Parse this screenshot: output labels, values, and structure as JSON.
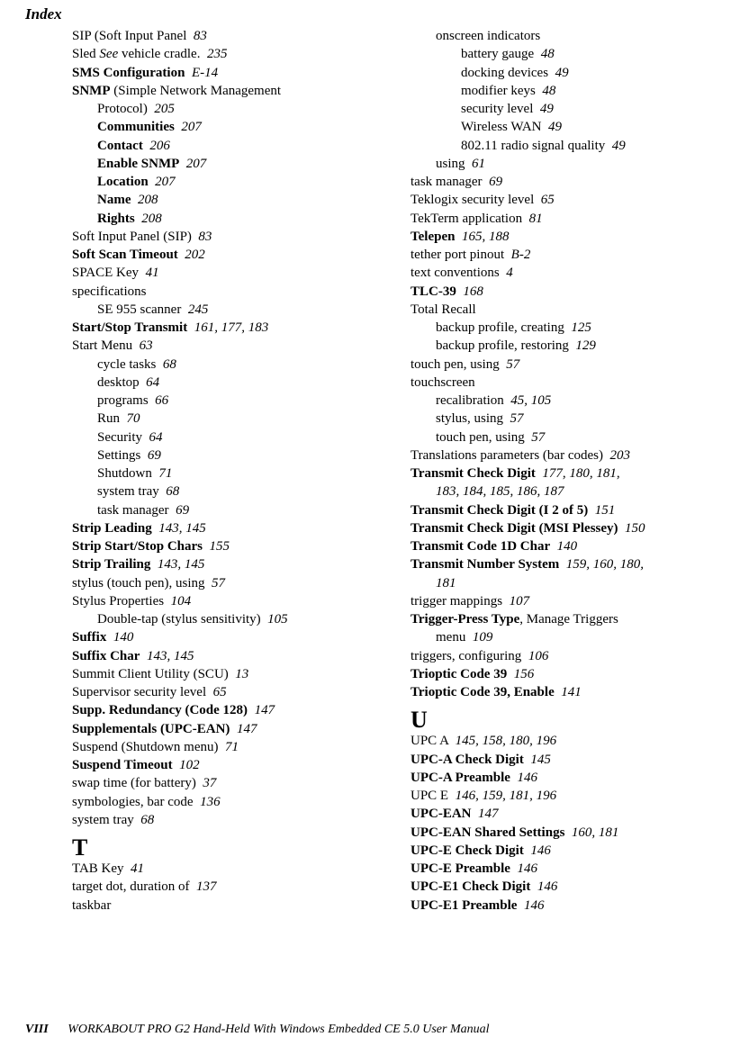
{
  "header": "Index",
  "footer": {
    "page": "VIII",
    "title": "WORKABOUT PRO G2 Hand-Held With Windows Embedded CE 5.0 User Manual"
  },
  "letter_T": "T",
  "letter_U": "U",
  "col1": [
    {
      "t": "SIP (Soft Input Panel",
      "p": "83"
    },
    {
      "pre": "Sled ",
      "mid_it": "See",
      "post": " vehicle cradle.",
      "p": "235"
    },
    {
      "b": "SMS Configuration",
      "p": "E-14"
    },
    {
      "b": "SNMP",
      "post": " (Simple Network Management"
    },
    {
      "t": "Protocol)",
      "p": "205",
      "ind": 1
    },
    {
      "b": "Communities",
      "p": "207",
      "ind": 1
    },
    {
      "b": "Contact",
      "p": "206",
      "ind": 1
    },
    {
      "b": "Enable SNMP",
      "p": "207",
      "ind": 1
    },
    {
      "b": "Location",
      "p": "207",
      "ind": 1
    },
    {
      "b": "Name",
      "p": "208",
      "ind": 1
    },
    {
      "b": "Rights",
      "p": "208",
      "ind": 1
    },
    {
      "t": "Soft Input Panel (SIP)",
      "p": "83"
    },
    {
      "b": "Soft Scan Timeout",
      "p": "202"
    },
    {
      "t": "SPACE Key",
      "p": "41"
    },
    {
      "t": "specifications"
    },
    {
      "t": "SE 955 scanner",
      "p": "245",
      "ind": 1
    },
    {
      "b": "Start/Stop Transmit",
      "p": "161, 177, 183"
    },
    {
      "t": "Start Menu",
      "p": "63"
    },
    {
      "t": "cycle tasks",
      "p": "68",
      "ind": 1
    },
    {
      "t": "desktop",
      "p": "64",
      "ind": 1
    },
    {
      "t": "programs",
      "p": "66",
      "ind": 1
    },
    {
      "t": "Run",
      "p": "70",
      "ind": 1
    },
    {
      "t": "Security",
      "p": "64",
      "ind": 1
    },
    {
      "t": "Settings",
      "p": "69",
      "ind": 1
    },
    {
      "t": "Shutdown",
      "p": "71",
      "ind": 1
    },
    {
      "t": "system tray",
      "p": "68",
      "ind": 1
    },
    {
      "t": "task manager",
      "p": "69",
      "ind": 1
    },
    {
      "b": "Strip Leading",
      "p": "143, 145"
    },
    {
      "b": "Strip Start/Stop Chars",
      "p": "155"
    },
    {
      "b": "Strip Trailing",
      "p": "143, 145"
    },
    {
      "t": "stylus (touch pen), using",
      "p": "57"
    },
    {
      "t": "Stylus Properties",
      "p": "104"
    },
    {
      "t": "Double-tap (stylus sensitivity)",
      "p": "105",
      "ind": 1
    },
    {
      "b": "Suffix",
      "p": "140"
    },
    {
      "b": "Suffix Char",
      "p": "143, 145"
    },
    {
      "t": "Summit Client Utility (SCU)",
      "p": "13"
    },
    {
      "t": "Supervisor security level",
      "p": "65"
    },
    {
      "b": "Supp. Redundancy (Code 128)",
      "p": "147"
    },
    {
      "b": "Supplementals (UPC-EAN)",
      "p": "147"
    },
    {
      "t": "Suspend (Shutdown menu)",
      "p": "71"
    },
    {
      "b": "Suspend Timeout",
      "p": "102"
    },
    {
      "t": "swap time (for battery)",
      "p": "37"
    },
    {
      "t": "symbologies, bar code",
      "p": "136"
    },
    {
      "t": "system tray",
      "p": "68"
    }
  ],
  "col1_T": [
    {
      "t": "TAB Key",
      "p": "41"
    },
    {
      "t": "target dot, duration of",
      "p": "137"
    },
    {
      "t": "taskbar"
    }
  ],
  "col2_top": [
    {
      "t": "onscreen indicators",
      "ind": 1
    },
    {
      "t": "battery gauge",
      "p": "48",
      "ind": 2
    },
    {
      "t": "docking devices",
      "p": "49",
      "ind": 2
    },
    {
      "t": "modifier keys",
      "p": "48",
      "ind": 2
    },
    {
      "t": "security level",
      "p": "49",
      "ind": 2
    },
    {
      "t": "Wireless WAN",
      "p": "49",
      "ind": 2
    },
    {
      "t": "802.11 radio signal quality",
      "p": "49",
      "ind": 2
    },
    {
      "t": "using",
      "p": "61",
      "ind": 1
    },
    {
      "t": "task manager",
      "p": "69"
    },
    {
      "t": "Teklogix security level",
      "p": "65"
    },
    {
      "t": "TekTerm application",
      "p": "81"
    },
    {
      "b": "Telepen",
      "p": "165, 188"
    },
    {
      "t": "tether port pinout",
      "p": "B-2"
    },
    {
      "t": "text conventions",
      "p": "4"
    },
    {
      "b": "TLC-39",
      "p": "168"
    },
    {
      "t": "Total Recall"
    },
    {
      "t": "backup profile, creating",
      "p": "125",
      "ind": 1
    },
    {
      "t": "backup profile, restoring",
      "p": "129",
      "ind": 1
    },
    {
      "t": "touch pen, using",
      "p": "57"
    },
    {
      "t": "touchscreen"
    },
    {
      "t": "recalibration",
      "p": "45, 105",
      "ind": 1
    },
    {
      "t": "stylus, using",
      "p": "57",
      "ind": 1
    },
    {
      "t": "touch pen, using",
      "p": "57",
      "ind": 1
    },
    {
      "t": "Translations parameters (bar codes)",
      "p": "203"
    },
    {
      "b": "Transmit Check Digit",
      "p": "177, 180, 181,"
    },
    {
      "tit": "183, 184, 185, 186, 187",
      "ind": 1
    },
    {
      "b": "Transmit Check Digit (I 2 of 5)",
      "p": "151"
    },
    {
      "b": "Transmit Check Digit (MSI Plessey)",
      "p": "150"
    },
    {
      "b": "Transmit Code 1D Char",
      "p": "140"
    },
    {
      "b": "Transmit Number System",
      "p": "159, 160, 180,"
    },
    {
      "tit": "181",
      "ind": 1
    },
    {
      "t": "trigger mappings",
      "p": "107"
    },
    {
      "b": "Trigger-Press Type",
      "post": ", Manage Triggers"
    },
    {
      "t": "menu",
      "p": "109",
      "ind": 1
    },
    {
      "t": "triggers, configuring",
      "p": "106"
    },
    {
      "b": "Trioptic Code 39",
      "p": "156"
    },
    {
      "b": "Trioptic Code 39, Enable",
      "p": "141"
    }
  ],
  "col2_U": [
    {
      "t": "UPC A",
      "p": "145, 158, 180, 196"
    },
    {
      "b": "UPC-A Check Digit",
      "p": "145"
    },
    {
      "b": "UPC-A Preamble",
      "p": "146"
    },
    {
      "t": "UPC E",
      "p": "146, 159, 181, 196"
    },
    {
      "b": "UPC-EAN",
      "p": "147"
    },
    {
      "b": "UPC-EAN Shared Settings",
      "p": "160, 181"
    },
    {
      "b": "UPC-E Check Digit",
      "p": "146"
    },
    {
      "b": "UPC-E Preamble",
      "p": "146"
    },
    {
      "b": "UPC-E1 Check Digit",
      "p": "146"
    },
    {
      "b": "UPC-E1 Preamble",
      "p": "146"
    }
  ]
}
